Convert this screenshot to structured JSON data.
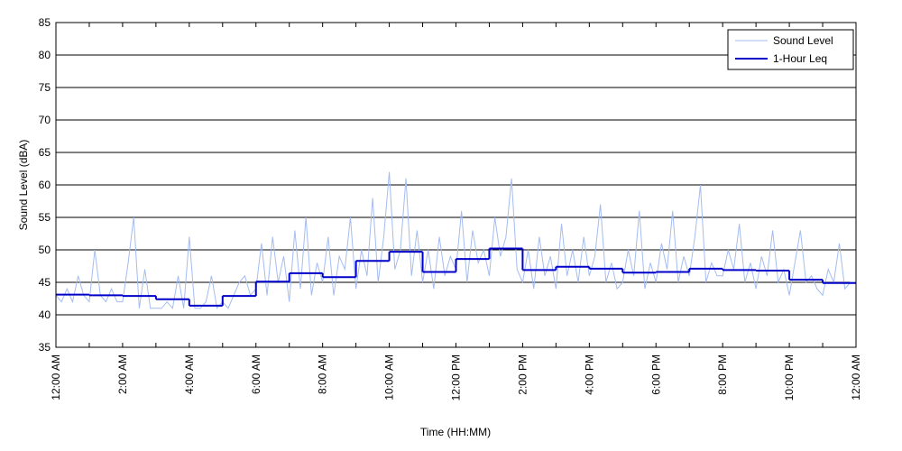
{
  "chart_data": {
    "type": "line",
    "xlabel": "Time (HH:MM)",
    "ylabel": "Sound Level (dBA)",
    "xlim": [
      0,
      1440
    ],
    "xticks": [
      {
        "value": 0,
        "label": "12:00 AM"
      },
      {
        "value": 120,
        "label": "2:00 AM"
      },
      {
        "value": 240,
        "label": "4:00 AM"
      },
      {
        "value": 360,
        "label": "6:00 AM"
      },
      {
        "value": 480,
        "label": "8:00 AM"
      },
      {
        "value": 600,
        "label": "10:00 AM"
      },
      {
        "value": 720,
        "label": "12:00 PM"
      },
      {
        "value": 840,
        "label": "2:00 PM"
      },
      {
        "value": 960,
        "label": "4:00 PM"
      },
      {
        "value": 1080,
        "label": "6:00 PM"
      },
      {
        "value": 1200,
        "label": "8:00 PM"
      },
      {
        "value": 1320,
        "label": "10:00 PM"
      },
      {
        "value": 1440,
        "label": "12:00 AM"
      }
    ],
    "xminorticks": [
      60,
      180,
      300,
      420,
      540,
      660,
      780,
      900,
      1020,
      1140,
      1260,
      1380
    ],
    "ylim": [
      35,
      85
    ],
    "yticks": [
      35,
      40,
      45,
      50,
      55,
      60,
      65,
      70,
      75,
      80,
      85
    ],
    "grid": true,
    "legend": "upper right",
    "series": [
      {
        "name": "Sound Level",
        "color": "#a4bcf2",
        "width": 1,
        "x": [
          0,
          10,
          20,
          30,
          40,
          50,
          60,
          70,
          80,
          90,
          100,
          110,
          120,
          130,
          140,
          150,
          160,
          170,
          180,
          190,
          200,
          210,
          220,
          230,
          240,
          250,
          260,
          270,
          280,
          290,
          300,
          310,
          320,
          330,
          340,
          350,
          360,
          370,
          380,
          390,
          400,
          410,
          420,
          430,
          440,
          450,
          460,
          470,
          480,
          490,
          500,
          510,
          520,
          530,
          540,
          550,
          560,
          570,
          580,
          590,
          600,
          610,
          620,
          630,
          640,
          650,
          660,
          670,
          680,
          690,
          700,
          710,
          720,
          730,
          740,
          750,
          760,
          770,
          780,
          790,
          800,
          810,
          820,
          830,
          840,
          850,
          860,
          870,
          880,
          890,
          900,
          910,
          920,
          930,
          940,
          950,
          960,
          970,
          980,
          990,
          1000,
          1010,
          1020,
          1030,
          1040,
          1050,
          1060,
          1070,
          1080,
          1090,
          1100,
          1110,
          1120,
          1130,
          1140,
          1150,
          1160,
          1170,
          1180,
          1190,
          1200,
          1210,
          1220,
          1230,
          1240,
          1250,
          1260,
          1270,
          1280,
          1290,
          1300,
          1310,
          1320,
          1330,
          1340,
          1350,
          1360,
          1370,
          1380,
          1390,
          1400,
          1410,
          1420,
          1430,
          1440
        ],
        "values": [
          43,
          42,
          44,
          42,
          46,
          43,
          42,
          50,
          43,
          42,
          44,
          42,
          42,
          48,
          55,
          41,
          47,
          41,
          41,
          41,
          42,
          41,
          46,
          41,
          52,
          41,
          41,
          42,
          46,
          41,
          42,
          41,
          43,
          45,
          46,
          43,
          44,
          51,
          43,
          52,
          45,
          49,
          42,
          53,
          44,
          55,
          43,
          48,
          45,
          52,
          43,
          49,
          47,
          55,
          44,
          50,
          46,
          58,
          45,
          52,
          62,
          47,
          50,
          61,
          46,
          53,
          45,
          50,
          44,
          52,
          46,
          49,
          47,
          56,
          45,
          53,
          48,
          50,
          46,
          55,
          49,
          52,
          61,
          47,
          45,
          50,
          44,
          52,
          46,
          49,
          44,
          54,
          46,
          50,
          45,
          52,
          46,
          49,
          57,
          45,
          48,
          44,
          45,
          50,
          46,
          56,
          44,
          48,
          45,
          51,
          47,
          56,
          45,
          49,
          46,
          52,
          60,
          45,
          48,
          46,
          46,
          50,
          47,
          54,
          45,
          48,
          44,
          49,
          46,
          53,
          45,
          47,
          43,
          48,
          53,
          45,
          46,
          44,
          43,
          47,
          45,
          51,
          44,
          45,
          45
        ]
      },
      {
        "name": "1-Hour Leq",
        "color": "#0000c8",
        "width": 2,
        "step": true,
        "x": [
          0,
          60,
          120,
          180,
          240,
          300,
          360,
          420,
          480,
          540,
          600,
          660,
          720,
          780,
          840,
          900,
          960,
          1020,
          1080,
          1140,
          1200,
          1260,
          1320,
          1380
        ],
        "values": [
          43.1,
          43.0,
          42.9,
          42.4,
          41.4,
          42.9,
          45.1,
          46.4,
          45.8,
          48.3,
          49.7,
          46.6,
          48.6,
          50.2,
          46.9,
          47.4,
          47.1,
          46.5,
          46.6,
          47.1,
          46.9,
          46.8,
          45.4,
          44.9
        ]
      }
    ]
  }
}
